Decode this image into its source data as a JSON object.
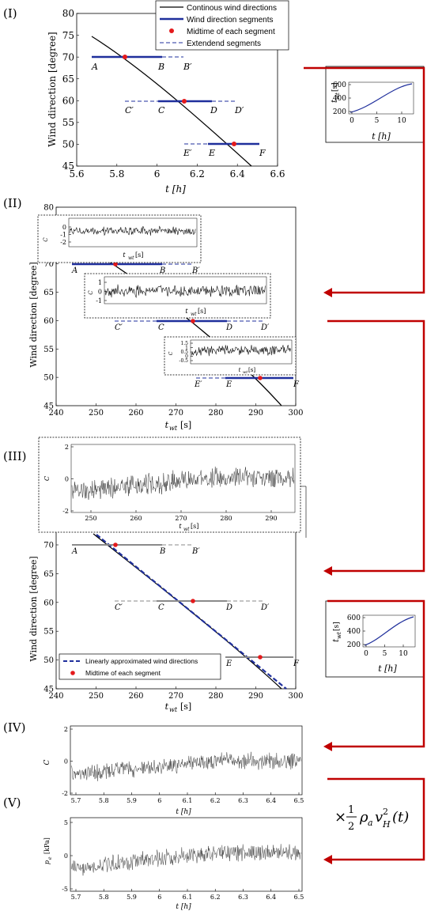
{
  "panels": {
    "I": "(I)",
    "II": "(II)",
    "III": "(III)",
    "IV": "(IV)",
    "V": "(V)"
  },
  "axes": {
    "wind_direction": "Wind direction [degree]",
    "t_h": "t [h]",
    "t_wt": "t",
    "t_wt_sub": "wt",
    "t_wt_unit": "[s]",
    "cpe": "C",
    "cpe_sub": "p,e",
    "pe_label": "p",
    "pe_sub": "e",
    "pe_unit": "[kPa]"
  },
  "legend_top": {
    "continuous": "Continous wind directions",
    "segments": "Wind direction segments",
    "midtime": "Midtime of each segment",
    "extended": "Extendend segments"
  },
  "legend_iii": {
    "approx": "Linearly approximated wind directions",
    "midtime": "Midtime of each segment"
  },
  "segment_labels": {
    "A": "A",
    "B": "B",
    "Bp": "B′",
    "C": "C",
    "Cp": "C′",
    "D": "D",
    "Dp": "D′",
    "E": "E",
    "Ep": "E′",
    "F": "F"
  },
  "formula": {
    "times": "×",
    "num": "1",
    "den": "2",
    "rho": "ρ",
    "rho_sub": "a",
    "v": "v",
    "v_sup": "2",
    "v_sub": "H",
    "arg": "(t)"
  },
  "colors": {
    "segment_blue": "#1f2f9c",
    "midpoint_red": "#e41a1c",
    "arrow_red": "#c00000",
    "signal": "#111111"
  },
  "chart_data": [
    {
      "id": "I",
      "type": "line",
      "xlabel": "t [h]",
      "ylabel": "Wind direction [degree]",
      "xlim": [
        5.6,
        6.6
      ],
      "ylim": [
        45,
        80
      ],
      "xticks": [
        "5.6",
        "5.8",
        "6",
        "6.2",
        "6.4",
        "6.6"
      ],
      "yticks": [
        "45",
        "50",
        "55",
        "60",
        "65",
        "70",
        "75",
        "80"
      ],
      "midpoints": [
        {
          "x": 5.84,
          "y": 70
        },
        {
          "x": 6.13,
          "y": 60
        },
        {
          "x": 6.37,
          "y": 50
        }
      ]
    },
    {
      "id": "II",
      "type": "line",
      "xlabel": "t_wt [s]",
      "ylabel": "Wind direction [degree]",
      "xlim": [
        240,
        300
      ],
      "ylim": [
        45,
        80
      ],
      "xticks": [
        "240",
        "250",
        "260",
        "270",
        "280",
        "290",
        "300"
      ],
      "yticks": [
        "45",
        "50",
        "55",
        "60",
        "65",
        "70",
        "75",
        "80"
      ],
      "inset_yticks": [
        [
          "0",
          "-1",
          "-2"
        ],
        [
          "1",
          "0",
          "-1"
        ],
        [
          "1.5",
          "1",
          "0.5",
          "0",
          "-0.5"
        ]
      ],
      "midpoints": [
        {
          "x": 254.5,
          "y": 70
        },
        {
          "x": 273,
          "y": 60
        },
        {
          "x": 289,
          "y": 50
        }
      ]
    },
    {
      "id": "III",
      "type": "line",
      "xlabel": "t_wt [s]",
      "ylabel": "Wind direction [degree]",
      "xlim": [
        240,
        300
      ],
      "ylim": [
        45,
        75
      ],
      "xticks": [
        "240",
        "250",
        "260",
        "270",
        "280",
        "290",
        "300"
      ],
      "yticks": [
        "45",
        "50",
        "55",
        "60",
        "65",
        "70"
      ],
      "inset_xticks": [
        "250",
        "260",
        "270",
        "280",
        "290"
      ],
      "inset_yticks": [
        "2",
        "0",
        "-2"
      ],
      "midpoints": [
        {
          "x": 254.5,
          "y": 70
        },
        {
          "x": 273,
          "y": 60
        },
        {
          "x": 289,
          "y": 50
        }
      ]
    },
    {
      "id": "IV",
      "type": "line",
      "xlabel": "t [h]",
      "ylabel": "C_p,e",
      "xticks": [
        "5.7",
        "5.8",
        "5.9",
        "6",
        "6.1",
        "6.2",
        "6.3",
        "6.4",
        "6.5"
      ],
      "yticks": [
        "2",
        "0",
        "-2"
      ]
    },
    {
      "id": "V",
      "type": "line",
      "xlabel": "t [h]",
      "ylabel": "p_e [kPa]",
      "xticks": [
        "5.7",
        "5.8",
        "5.9",
        "6",
        "6.1",
        "6.2",
        "6.3",
        "6.4",
        "6.5"
      ],
      "yticks": [
        "5",
        "0",
        "-5"
      ]
    },
    {
      "id": "map",
      "type": "line",
      "xlabel": "t [h]",
      "ylabel": "t_wt [s]",
      "xticks": [
        "0",
        "5",
        "10"
      ],
      "yticks": [
        "600",
        "400",
        "200"
      ]
    }
  ]
}
